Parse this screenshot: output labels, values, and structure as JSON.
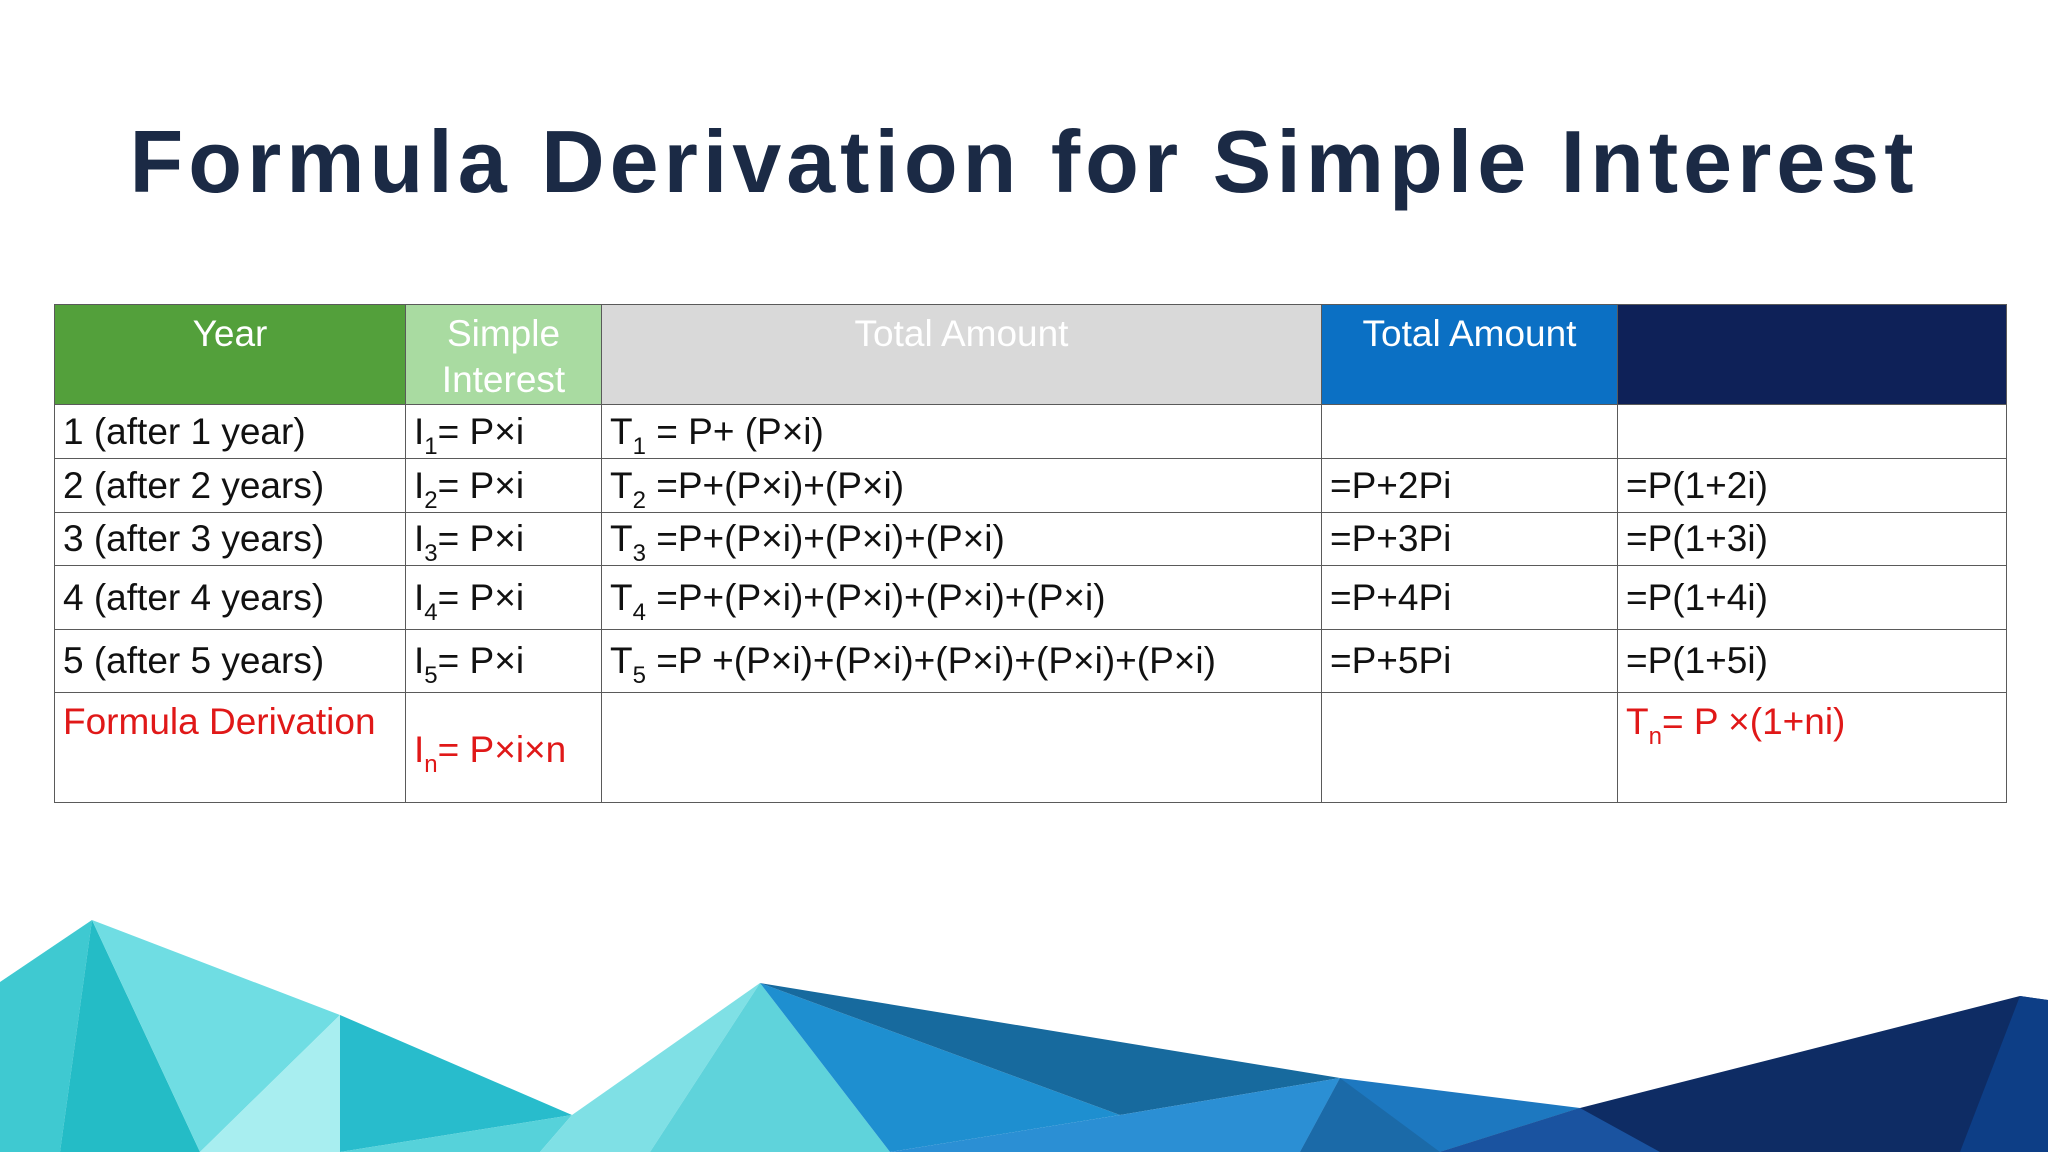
{
  "title": "Formula Derivation for Simple Interest",
  "table": {
    "headers": [
      "Year",
      "Simple Interest",
      "Total Amount",
      "Total Amount",
      ""
    ],
    "rows": [
      {
        "year": "1 (after 1 year)",
        "si": {
          "base": "I",
          "sub": "1",
          "rest": "= P×i"
        },
        "ta": {
          "base": "T",
          "sub": "1",
          "rest": " = P+ (P×i)"
        },
        "ta2": "",
        "ta3": ""
      },
      {
        "year": "2 (after 2 years)",
        "si": {
          "base": "I",
          "sub": "2",
          "rest": "= P×i"
        },
        "ta": {
          "base": "T",
          "sub": "2",
          "rest": " =P+(P×i)+(P×i)"
        },
        "ta2": "=P+2Pi",
        "ta3": "=P(1+2i)"
      },
      {
        "year": "3 (after 3 years)",
        "si": {
          "base": "I",
          "sub": "3",
          "rest": "= P×i"
        },
        "ta": {
          "base": "T",
          "sub": "3",
          "rest": " =P+(P×i)+(P×i)+(P×i)"
        },
        "ta2": "=P+3Pi",
        "ta3": "=P(1+3i)"
      },
      {
        "year": "4 (after 4 years)",
        "si": {
          "base": "I",
          "sub": "4",
          "rest": "= P×i"
        },
        "ta": {
          "base": "T",
          "sub": "4",
          "rest": " =P+(P×i)+(P×i)+(P×i)+(P×i)"
        },
        "ta2": "=P+4Pi",
        "ta3": "=P(1+4i)"
      },
      {
        "year": "5 (after 5 years)",
        "si": {
          "base": "I",
          "sub": "5",
          "rest": "= P×i"
        },
        "ta": {
          "base": "T",
          "sub": "5",
          "rest": " =P +(P×i)+(P×i)+(P×i)+(P×i)+(P×i)"
        },
        "ta2": "=P+5Pi",
        "ta3": "=P(1+5i)"
      }
    ],
    "formula": {
      "label": "Formula Derivation",
      "si": {
        "base": "I",
        "sub": "n",
        "rest": "= P×i×n"
      },
      "tn": {
        "base": "T",
        "sub": "n",
        "rest": "= P ×(1+ni)"
      }
    }
  },
  "colors": {
    "title": "#1b2a45",
    "header_year": "#53a03b",
    "header_simple_interest": "#a9dba1",
    "header_total_amount": "#d9d9d9",
    "header_total_amount_2": "#0b70c4",
    "header_blank": "#0e2158",
    "formula_text": "#e01818"
  }
}
